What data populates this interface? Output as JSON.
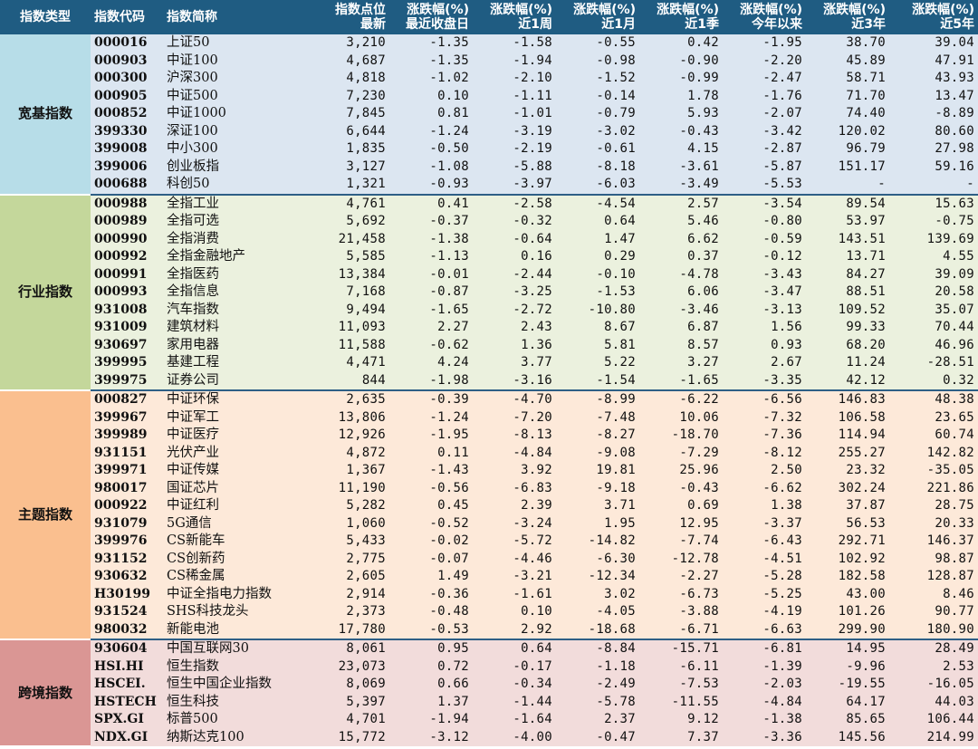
{
  "headers": {
    "type": "指数类型",
    "code": "指数代码",
    "name": "指数简称",
    "level": [
      "指数点位",
      "最新"
    ],
    "d1": [
      "涨跌幅(%)",
      "最近收盘日"
    ],
    "w1": [
      "涨跌幅(%)",
      "近1周"
    ],
    "m1": [
      "涨跌幅(%)",
      "近1月"
    ],
    "q1": [
      "涨跌幅(%)",
      "近1季"
    ],
    "ytd": [
      "涨跌幅(%)",
      "今年以来"
    ],
    "y3": [
      "涨跌幅(%)",
      "近3年"
    ],
    "y5": [
      "涨跌幅(%)",
      "近5年"
    ]
  },
  "groups": [
    {
      "key": "kuanji",
      "label": "宽基指数",
      "color": "#b7dde8",
      "rows": [
        [
          "000016",
          "上证50",
          "3,210",
          "-1.35",
          "-1.58",
          "-0.55",
          "0.42",
          "-1.95",
          "38.70",
          "39.04"
        ],
        [
          "000903",
          "中证100",
          "4,687",
          "-1.35",
          "-1.94",
          "-0.98",
          "-0.90",
          "-2.20",
          "45.89",
          "47.91"
        ],
        [
          "000300",
          "沪深300",
          "4,818",
          "-1.02",
          "-2.10",
          "-1.52",
          "-0.99",
          "-2.47",
          "58.71",
          "43.93"
        ],
        [
          "000905",
          "中证500",
          "7,230",
          "0.10",
          "-1.11",
          "-0.14",
          "1.78",
          "-1.76",
          "71.70",
          "13.47"
        ],
        [
          "000852",
          "中证1000",
          "7,845",
          "0.81",
          "-1.01",
          "-0.79",
          "5.93",
          "-2.07",
          "74.40",
          "-8.89"
        ],
        [
          "399330",
          "深证100",
          "6,644",
          "-1.24",
          "-3.19",
          "-3.02",
          "-0.43",
          "-3.42",
          "120.02",
          "80.60"
        ],
        [
          "399008",
          "中小300",
          "1,835",
          "-0.50",
          "-2.19",
          "-0.61",
          "4.15",
          "-2.87",
          "96.79",
          "27.98"
        ],
        [
          "399006",
          "创业板指",
          "3,127",
          "-1.08",
          "-5.88",
          "-8.18",
          "-3.61",
          "-5.87",
          "151.17",
          "59.16"
        ],
        [
          "000688",
          "科创50",
          "1,321",
          "-0.93",
          "-3.97",
          "-6.03",
          "-3.49",
          "-5.53",
          "-",
          "-"
        ]
      ]
    },
    {
      "key": "hangye",
      "label": "行业指数",
      "color": "#c4d79b",
      "rows": [
        [
          "000988",
          "全指工业",
          "4,761",
          "0.41",
          "-2.58",
          "-4.54",
          "2.57",
          "-3.54",
          "89.54",
          "15.63"
        ],
        [
          "000989",
          "全指可选",
          "5,692",
          "-0.37",
          "-0.32",
          "0.64",
          "5.46",
          "-0.80",
          "53.97",
          "-0.75"
        ],
        [
          "000990",
          "全指消费",
          "21,458",
          "-1.38",
          "-0.64",
          "1.47",
          "6.62",
          "-0.59",
          "143.51",
          "139.69"
        ],
        [
          "000992",
          "全指金融地产",
          "5,585",
          "-1.13",
          "0.16",
          "0.29",
          "0.37",
          "-0.12",
          "13.71",
          "4.55"
        ],
        [
          "000991",
          "全指医药",
          "13,384",
          "-0.01",
          "-2.44",
          "-0.10",
          "-4.78",
          "-3.43",
          "84.27",
          "39.09"
        ],
        [
          "000993",
          "全指信息",
          "7,168",
          "-0.87",
          "-3.25",
          "-1.53",
          "6.06",
          "-3.47",
          "88.51",
          "20.58"
        ],
        [
          "931008",
          "汽车指数",
          "9,494",
          "-1.65",
          "-2.72",
          "-10.80",
          "-3.46",
          "-3.13",
          "109.52",
          "35.07"
        ],
        [
          "931009",
          "建筑材料",
          "11,093",
          "2.27",
          "2.43",
          "8.67",
          "6.87",
          "1.56",
          "99.33",
          "70.44"
        ],
        [
          "930697",
          "家用电器",
          "11,588",
          "-0.62",
          "1.36",
          "5.81",
          "8.57",
          "0.93",
          "68.20",
          "46.96"
        ],
        [
          "399995",
          "基建工程",
          "4,471",
          "4.24",
          "3.77",
          "5.22",
          "3.27",
          "2.67",
          "11.24",
          "-28.51"
        ],
        [
          "399975",
          "证券公司",
          "844",
          "-1.98",
          "-3.16",
          "-1.54",
          "-1.65",
          "-3.35",
          "42.12",
          "0.32"
        ]
      ]
    },
    {
      "key": "zhuti",
      "label": "主题指数",
      "color": "#fabf8f",
      "rows": [
        [
          "000827",
          "中证环保",
          "2,635",
          "-0.39",
          "-4.70",
          "-8.99",
          "-6.22",
          "-6.56",
          "146.83",
          "48.38"
        ],
        [
          "399967",
          "中证军工",
          "13,806",
          "-1.24",
          "-7.20",
          "-7.48",
          "10.06",
          "-7.32",
          "106.58",
          "23.65"
        ],
        [
          "399989",
          "中证医疗",
          "12,926",
          "-1.95",
          "-8.13",
          "-8.27",
          "-18.70",
          "-7.36",
          "114.94",
          "60.74"
        ],
        [
          "931151",
          "光伏产业",
          "4,872",
          "0.11",
          "-4.84",
          "-9.08",
          "-7.29",
          "-8.12",
          "255.27",
          "142.82"
        ],
        [
          "399971",
          "中证传媒",
          "1,367",
          "-1.43",
          "3.92",
          "19.81",
          "25.96",
          "2.50",
          "23.32",
          "-35.05"
        ],
        [
          "980017",
          "国证芯片",
          "11,190",
          "-0.56",
          "-6.83",
          "-9.18",
          "-0.43",
          "-6.62",
          "302.24",
          "221.86"
        ],
        [
          "000922",
          "中证红利",
          "5,282",
          "0.45",
          "2.39",
          "3.71",
          "0.69",
          "1.38",
          "37.87",
          "28.75"
        ],
        [
          "931079",
          "5G通信",
          "1,060",
          "-0.52",
          "-3.24",
          "1.95",
          "12.95",
          "-3.37",
          "56.53",
          "20.33"
        ],
        [
          "399976",
          "CS新能车",
          "5,433",
          "-0.02",
          "-5.72",
          "-14.82",
          "-7.74",
          "-6.43",
          "292.71",
          "146.37"
        ],
        [
          "931152",
          "CS创新药",
          "2,775",
          "-0.07",
          "-4.46",
          "-6.30",
          "-12.78",
          "-4.51",
          "102.92",
          "98.87"
        ],
        [
          "930632",
          "CS稀金属",
          "2,605",
          "1.49",
          "-3.21",
          "-12.34",
          "-2.27",
          "-5.28",
          "182.58",
          "128.87"
        ],
        [
          "H30199",
          "中证全指电力指数",
          "2,914",
          "-0.36",
          "-1.61",
          "3.02",
          "-6.73",
          "-5.25",
          "43.00",
          "8.46"
        ],
        [
          "931524",
          "SHS科技龙头",
          "2,373",
          "-0.48",
          "0.10",
          "-4.05",
          "-3.88",
          "-4.19",
          "101.26",
          "90.77"
        ],
        [
          "980032",
          "新能电池",
          "17,780",
          "-0.53",
          "2.92",
          "-18.68",
          "-6.71",
          "-6.63",
          "299.90",
          "180.90"
        ]
      ]
    },
    {
      "key": "kuajing",
      "label": "跨境指数",
      "color": "#da9694",
      "rows": [
        [
          "930604",
          "中国互联网30",
          "8,061",
          "0.95",
          "0.64",
          "-8.84",
          "-15.71",
          "-6.81",
          "14.95",
          "28.49"
        ],
        [
          "HSI.HI",
          "恒生指数",
          "23,073",
          "0.72",
          "-0.17",
          "-1.18",
          "-6.11",
          "-1.39",
          "-9.96",
          "2.53"
        ],
        [
          "HSCEI.",
          "恒生中国企业指数",
          "8,069",
          "0.66",
          "-0.34",
          "-2.49",
          "-7.53",
          "-2.03",
          "-19.55",
          "-16.05"
        ],
        [
          "HSTECH",
          "恒生科技",
          "5,397",
          "1.37",
          "-1.44",
          "-5.78",
          "-11.55",
          "-4.84",
          "64.17",
          "44.03"
        ],
        [
          "SPX.GI",
          "标普500",
          "4,701",
          "-1.94",
          "-1.64",
          "2.37",
          "9.12",
          "-1.38",
          "85.65",
          "106.44"
        ],
        [
          "NDX.GI",
          "纳斯达克100",
          "15,772",
          "-3.12",
          "-4.00",
          "-0.47",
          "7.37",
          "-3.36",
          "145.56",
          "214.99"
        ]
      ]
    }
  ]
}
